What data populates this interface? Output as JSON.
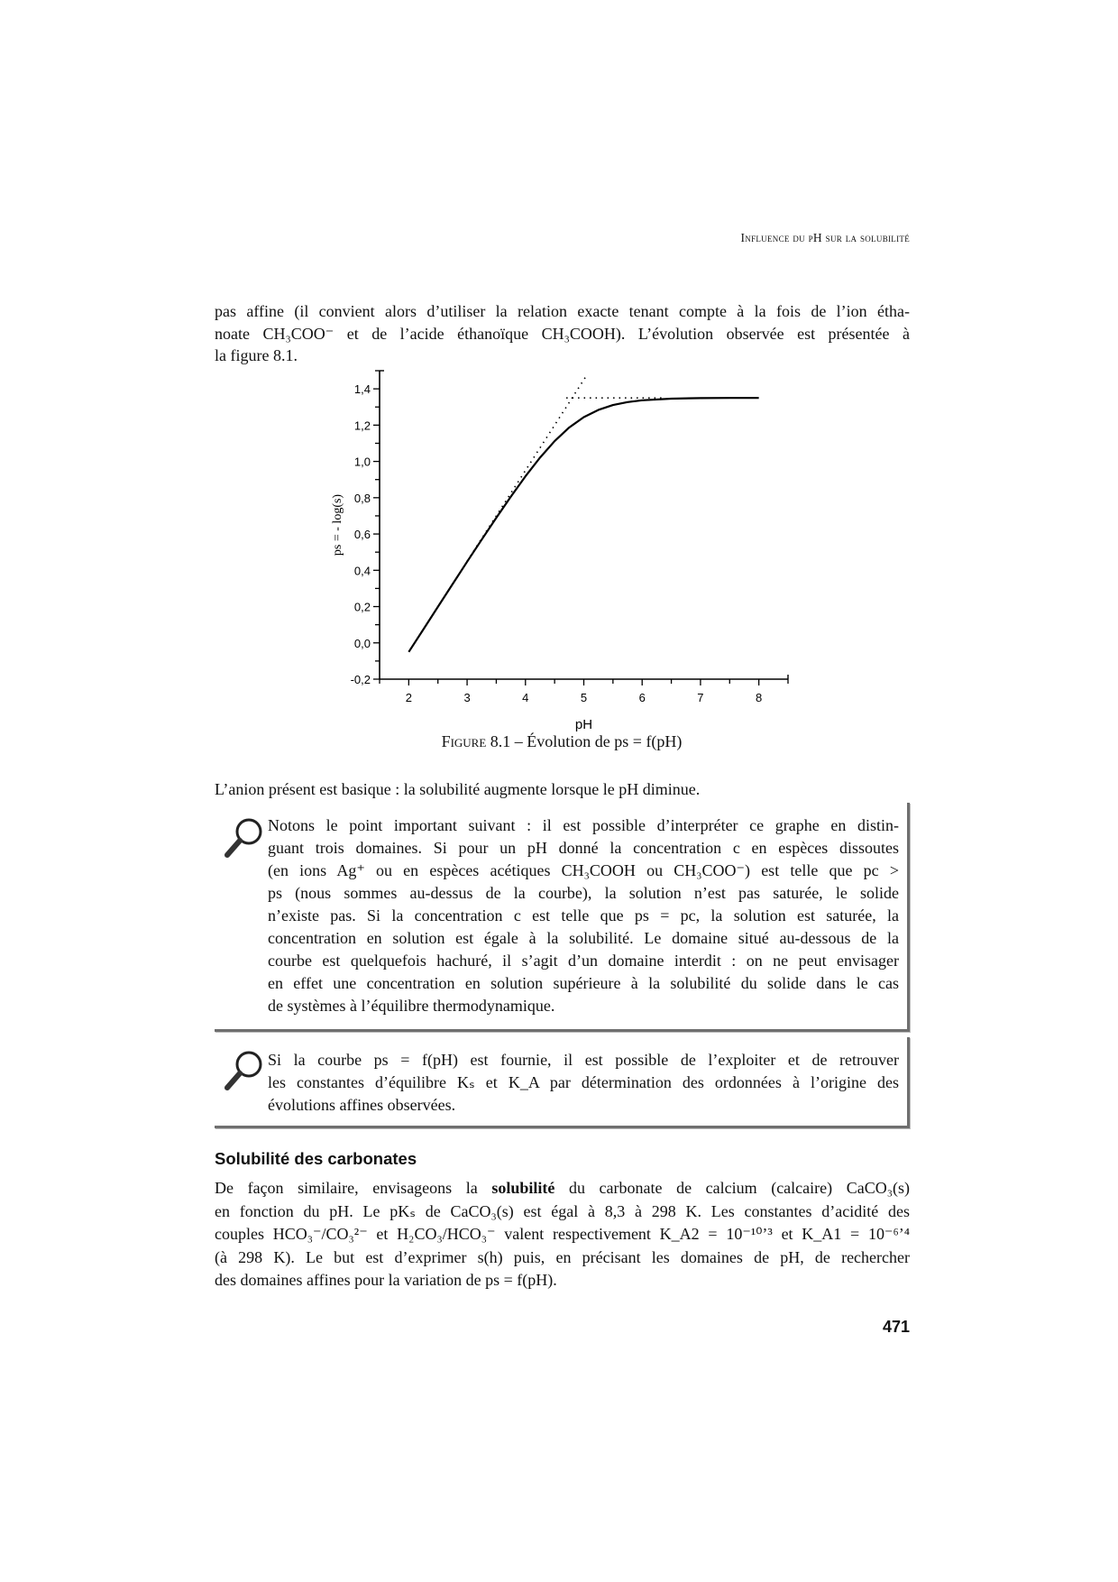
{
  "header": {
    "running_title": "Influence du pH sur la solubilité"
  },
  "paragraph1": [
    "pas affine (il convient alors d’utiliser la relation exacte tenant compte à la fois de l’ion étha-",
    "noate CH₃COO⁻ et de l’acide éthanoïque CH₃COOH). L’évolution observée est présentée à",
    "la figure 8.1."
  ],
  "figure": {
    "caption_label": "Figure 8.1",
    "caption_text": " – Évolution de ps = f(pH)"
  },
  "chart_data": {
    "type": "line",
    "title": "",
    "xlabel": "pH",
    "ylabel": "ps = - log(s)",
    "xlim": [
      1.5,
      8.5
    ],
    "ylim": [
      -0.2,
      1.5
    ],
    "x_ticks": [
      "2",
      "3",
      "4",
      "5",
      "6",
      "7",
      "8"
    ],
    "y_ticks": [
      "-0,2",
      "0,0",
      "0,2",
      "0,4",
      "0,6",
      "0,8",
      "1,0",
      "1,2",
      "1,4"
    ],
    "grid": false,
    "series": [
      {
        "style": "solid",
        "x": [
          2,
          2.25,
          2.5,
          2.75,
          3,
          3.25,
          3.5,
          3.75,
          4,
          4.25,
          4.5,
          4.75,
          5,
          5.25,
          5.5,
          5.75,
          6,
          6.5,
          7,
          7.5,
          8
        ],
        "y": [
          -0.05,
          0.074,
          0.199,
          0.323,
          0.447,
          0.569,
          0.689,
          0.806,
          0.918,
          1.021,
          1.112,
          1.187,
          1.244,
          1.284,
          1.311,
          1.327,
          1.337,
          1.346,
          1.349,
          1.35,
          1.35
        ]
      },
      {
        "style": "dotted",
        "x": [
          3.0,
          5.05
        ],
        "y": [
          0.45,
          1.475
        ]
      },
      {
        "style": "dotted",
        "x": [
          4.7,
          6.4
        ],
        "y": [
          1.35,
          1.35
        ]
      }
    ]
  },
  "sentence_anion": "L’anion présent est basique : la solubilité augmente lorsque le pH diminue.",
  "note1": [
    "Notons le point important suivant : il est possible d’interpréter ce graphe en distin-",
    "guant trois domaines. Si pour un pH donné la concentration c en espèces dissoutes",
    "(en ions Ag⁺ ou en espèces acétiques CH₃COOH ou CH₃COO⁻) est telle que pc >",
    "ps (nous sommes au-dessus de la courbe), la solution n’est pas saturée, le solide",
    "n’existe pas. Si la concentration c est telle que ps = pc, la solution est saturée, la",
    "concentration en solution est égale à la solubilité. Le domaine situé au-dessous de la",
    "courbe est quelquefois hachuré, il s’agit d’un domaine interdit : on ne peut envisager",
    "en effet une concentration en solution supérieure à la solubilité du solide dans le cas",
    "de systèmes à l’équilibre thermodynamique."
  ],
  "note2": [
    "Si la courbe ps = f(pH) est fournie, il est possible de l’exploiter et de retrouver",
    "les constantes d’équilibre Kₛ et K_A par détermination des ordonnées à l’origine des",
    "évolutions affines observées."
  ],
  "section": {
    "heading": "Solubilité des carbonates",
    "line1": {
      "before": "De façon similaire, envisageons la ",
      "bold": "solubilité",
      "after": " du carbonate de calcium (calcaire) CaCO₃(s)"
    },
    "lines": [
      "en fonction du pH. Le pKₛ de CaCO₃(s) est égal à 8,3 à 298 K. Les constantes d’acidité des",
      "couples HCO₃⁻/CO₃²⁻ et H₂CO₃/HCO₃⁻ valent respectivement K_A2 = 10⁻¹⁰’³ et K_A1 = 10⁻⁶’⁴",
      "(à 298 K). Le but est d’exprimer s(h) puis, en précisant les domaines de pH, de rechercher",
      "des domaines affines pour la variation de ps = f(pH)."
    ]
  },
  "page_number": "471",
  "icons": {
    "note": "magnifier-icon"
  },
  "colors": {
    "frame": "#6f6f6f",
    "text": "#111111"
  }
}
